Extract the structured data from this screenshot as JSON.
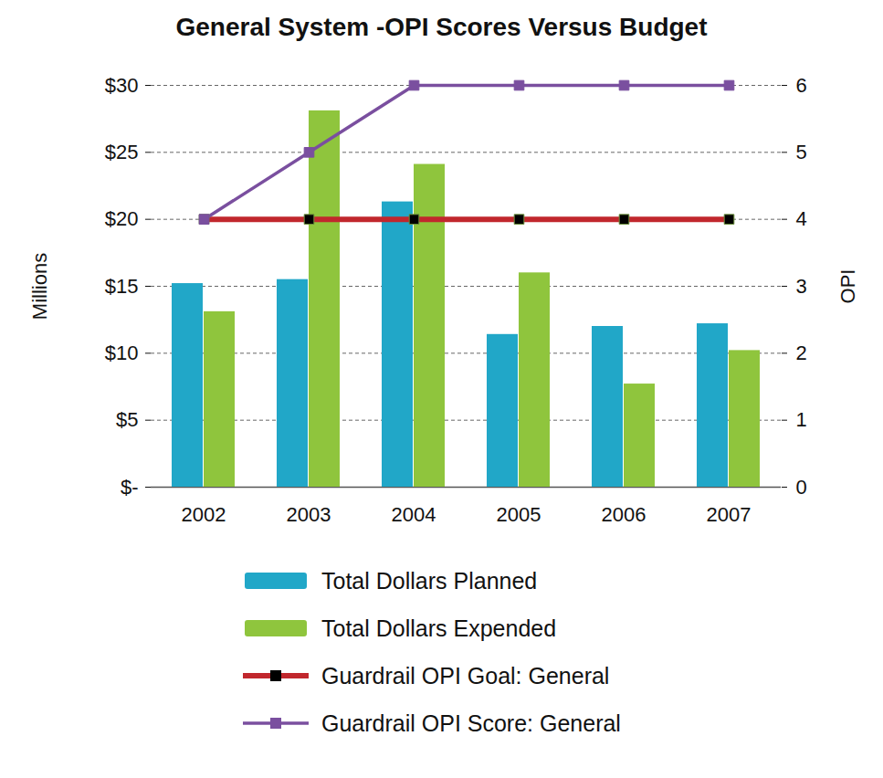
{
  "chart_data": {
    "type": "bar",
    "title": "General System -OPI Scores Versus Budget",
    "categories": [
      "2002",
      "2003",
      "2004",
      "2005",
      "2006",
      "2007"
    ],
    "ylabel": "Millions",
    "y2label": "OPI",
    "ylim": [
      0,
      30
    ],
    "yticks": [
      {
        "value": 0,
        "label": "$-"
      },
      {
        "value": 5,
        "label": "$5"
      },
      {
        "value": 10,
        "label": "$10"
      },
      {
        "value": 15,
        "label": "$15"
      },
      {
        "value": 20,
        "label": "$20"
      },
      {
        "value": 25,
        "label": "$25"
      },
      {
        "value": 30,
        "label": "$30"
      }
    ],
    "y2lim": [
      0,
      6
    ],
    "y2ticks": [
      0,
      1,
      2,
      3,
      4,
      5,
      6
    ],
    "grid": true,
    "legend": "bottom",
    "series": [
      {
        "name": "Total Dollars Planned",
        "type": "bar",
        "color": "#21a7c8",
        "values": [
          15.2,
          15.5,
          21.3,
          11.4,
          12.0,
          12.2
        ]
      },
      {
        "name": "Total Dollars Expended",
        "type": "bar",
        "color": "#8fc53d",
        "values": [
          13.1,
          28.1,
          24.1,
          16.0,
          7.7,
          10.2
        ]
      },
      {
        "name": "Guardrail OPI Goal: General",
        "type": "line",
        "axis": "y2",
        "marker": "square",
        "color": "#c1272d",
        "values": [
          4,
          4,
          4,
          4,
          4,
          4
        ]
      },
      {
        "name": "Guardrail OPI Score: General",
        "type": "line",
        "axis": "y2",
        "marker": "square",
        "color": "#7a4f9f",
        "values": [
          4,
          5,
          6,
          6,
          6,
          6
        ]
      }
    ]
  }
}
